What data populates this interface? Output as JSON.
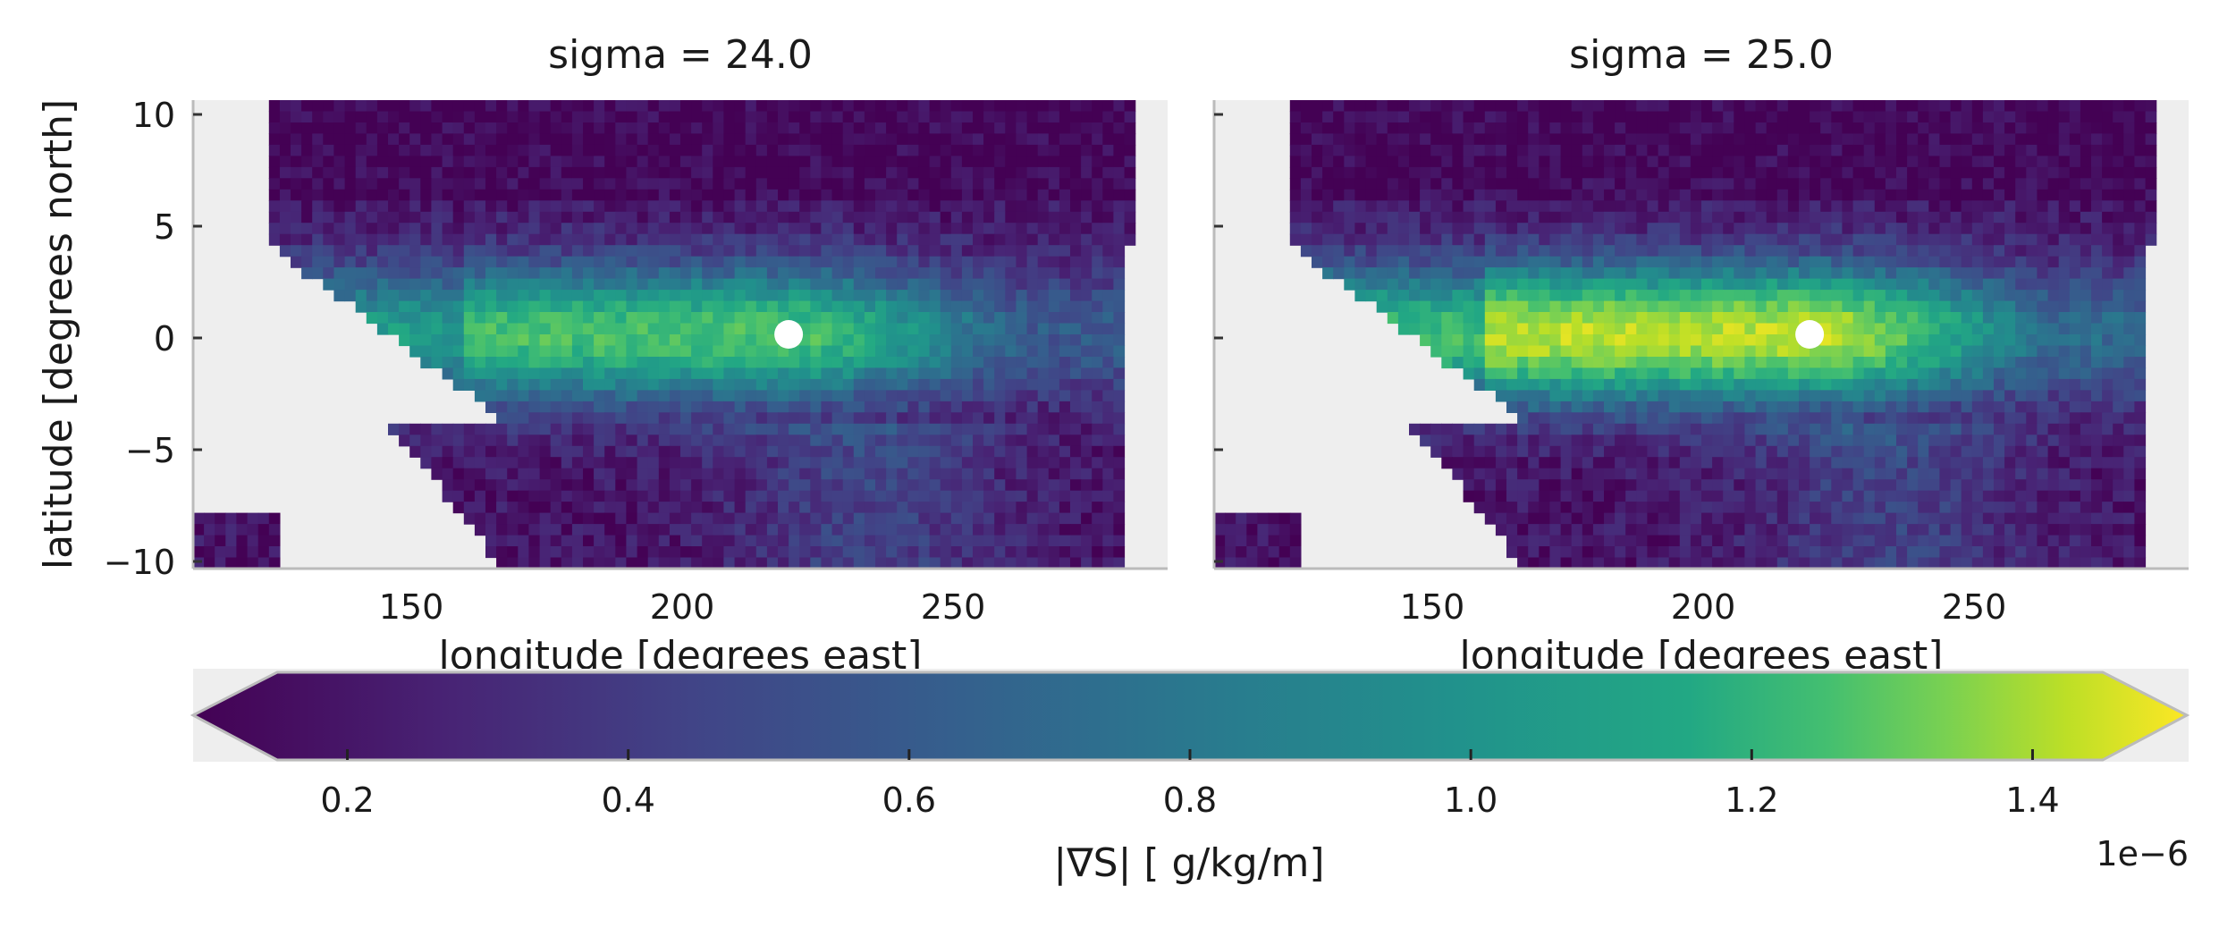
{
  "chart_data": [
    {
      "type": "heatmap",
      "title": "sigma = 24.0",
      "xlabel": "longitude [degrees east]",
      "ylabel": "latitude [degrees north]",
      "xlim": [
        110,
        290
      ],
      "ylim": [
        -10.5,
        10.5
      ],
      "xticks": [
        "150",
        "200",
        "250"
      ],
      "yticks": [
        "10",
        "5",
        "0",
        "−5",
        "−10"
      ],
      "marker": {
        "x": 220,
        "y": 0,
        "color": "#ffffff"
      },
      "background_color": "#eeeeee"
    },
    {
      "type": "heatmap",
      "title": "sigma = 25.0",
      "xlabel": "longitude [degrees east]",
      "ylabel": "",
      "xlim": [
        110,
        290
      ],
      "ylim": [
        -10.5,
        10.5
      ],
      "xticks": [
        "150",
        "200",
        "250"
      ],
      "yticks": [],
      "marker": {
        "x": 220,
        "y": 0,
        "color": "#ffffff"
      },
      "background_color": "#eeeeee"
    }
  ],
  "colorbar": {
    "label": "|∇S| [ g/kg/m]",
    "ticks": [
      "0.2",
      "0.4",
      "0.6",
      "0.8",
      "1.0",
      "1.2",
      "1.4"
    ],
    "range": [
      0.15,
      1.45
    ],
    "offset_label": "1e−6",
    "colormap": "viridis",
    "extend": "both"
  }
}
